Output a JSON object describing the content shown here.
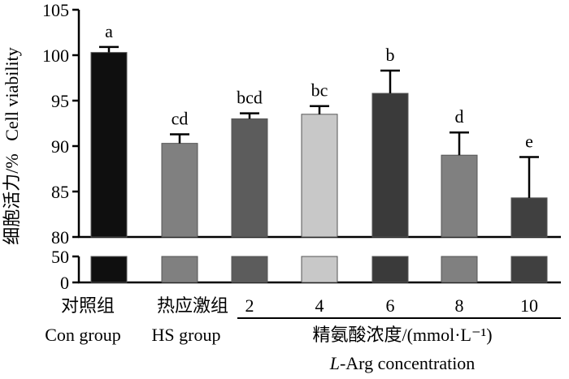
{
  "chart_data": {
    "type": "bar",
    "ylabel_cn": "细胞活力/%",
    "ylabel_en": "Cell viability",
    "upper_ylim": [
      80,
      105
    ],
    "upper_yticks": [
      "80",
      "85",
      "90",
      "95",
      "100",
      "105"
    ],
    "lower_ylim": [
      0,
      50
    ],
    "lower_yticks": [
      "0",
      "50"
    ],
    "categories": [
      {
        "id": "con",
        "cn": "对照组",
        "en": "Con group",
        "value": 100.3,
        "err": 0.6,
        "letter": "a",
        "color": "#0f0f0f"
      },
      {
        "id": "hs",
        "cn": "热应激组",
        "en": "HS group",
        "value": 90.3,
        "err": 1.0,
        "letter": "cd",
        "color": "#808080"
      },
      {
        "id": "arg2",
        "cn": "2",
        "en": "",
        "value": 93.0,
        "err": 0.6,
        "letter": "bcd",
        "color": "#5c5c5c"
      },
      {
        "id": "arg4",
        "cn": "4",
        "en": "",
        "value": 93.5,
        "err": 0.9,
        "letter": "bc",
        "color": "#c8c8c8"
      },
      {
        "id": "arg6",
        "cn": "6",
        "en": "",
        "value": 95.8,
        "err": 2.5,
        "letter": "b",
        "color": "#3a3a3a"
      },
      {
        "id": "arg8",
        "cn": "8",
        "en": "",
        "value": 89.0,
        "err": 2.5,
        "letter": "d",
        "color": "#808080"
      },
      {
        "id": "arg10",
        "cn": "10",
        "en": "",
        "value": 84.3,
        "err": 4.5,
        "letter": "e",
        "color": "#404040"
      }
    ],
    "group_label_cn": "精氨酸浓度/(mmol·L⁻¹)",
    "group_label_en_italic": "L",
    "group_label_en_rest": "-Arg concentration"
  }
}
